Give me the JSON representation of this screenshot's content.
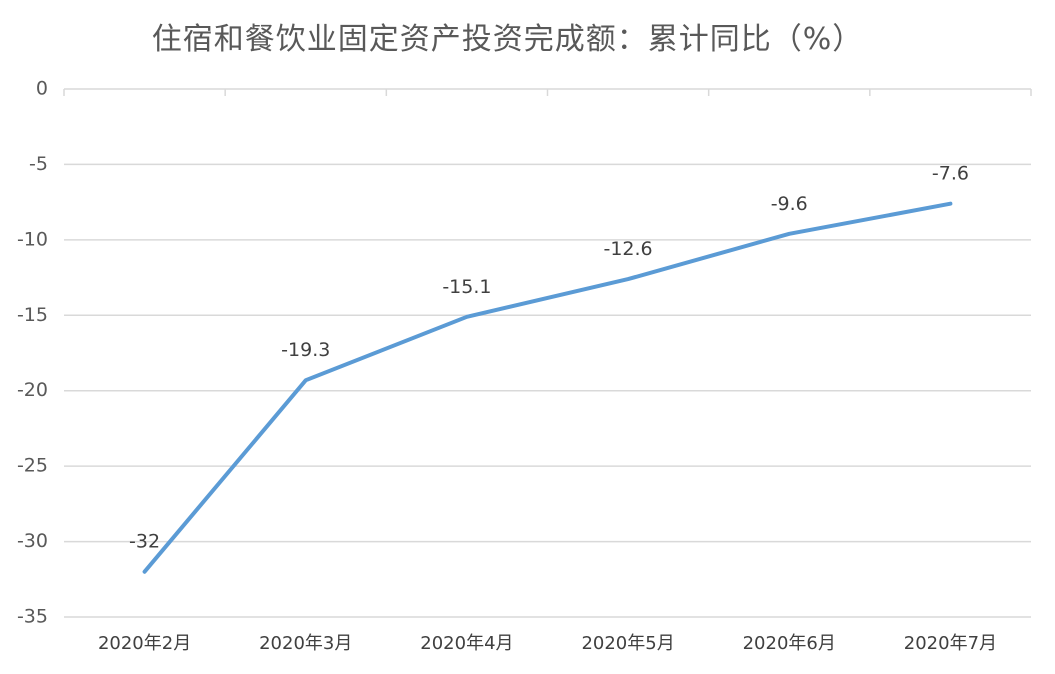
{
  "chart_data": {
    "type": "line",
    "title": "住宿和餐饮业固定资产投资完成额：累计同比（%）",
    "xlabel": "",
    "ylabel": "",
    "categories": [
      "2020年2月",
      "2020年3月",
      "2020年4月",
      "2020年5月",
      "2020年6月",
      "2020年7月"
    ],
    "series": [
      {
        "values": [
          -32,
          -19.3,
          -15.1,
          -12.6,
          -9.6,
          -7.6
        ],
        "data_labels": [
          "-32",
          "-19.3",
          "-15.1",
          "-12.6",
          "-9.6",
          "-7.6"
        ],
        "color": "#5b9bd5"
      }
    ],
    "ylim": [
      -35,
      0
    ],
    "yticks": [
      0,
      -5,
      -10,
      -15,
      -20,
      -25,
      -30,
      -35
    ],
    "ytick_labels": [
      "0",
      "-5",
      "-10",
      "-15",
      "-20",
      "-25",
      "-30",
      "-35"
    ],
    "grid": true,
    "legend": "none",
    "x_axis_position": "top"
  }
}
